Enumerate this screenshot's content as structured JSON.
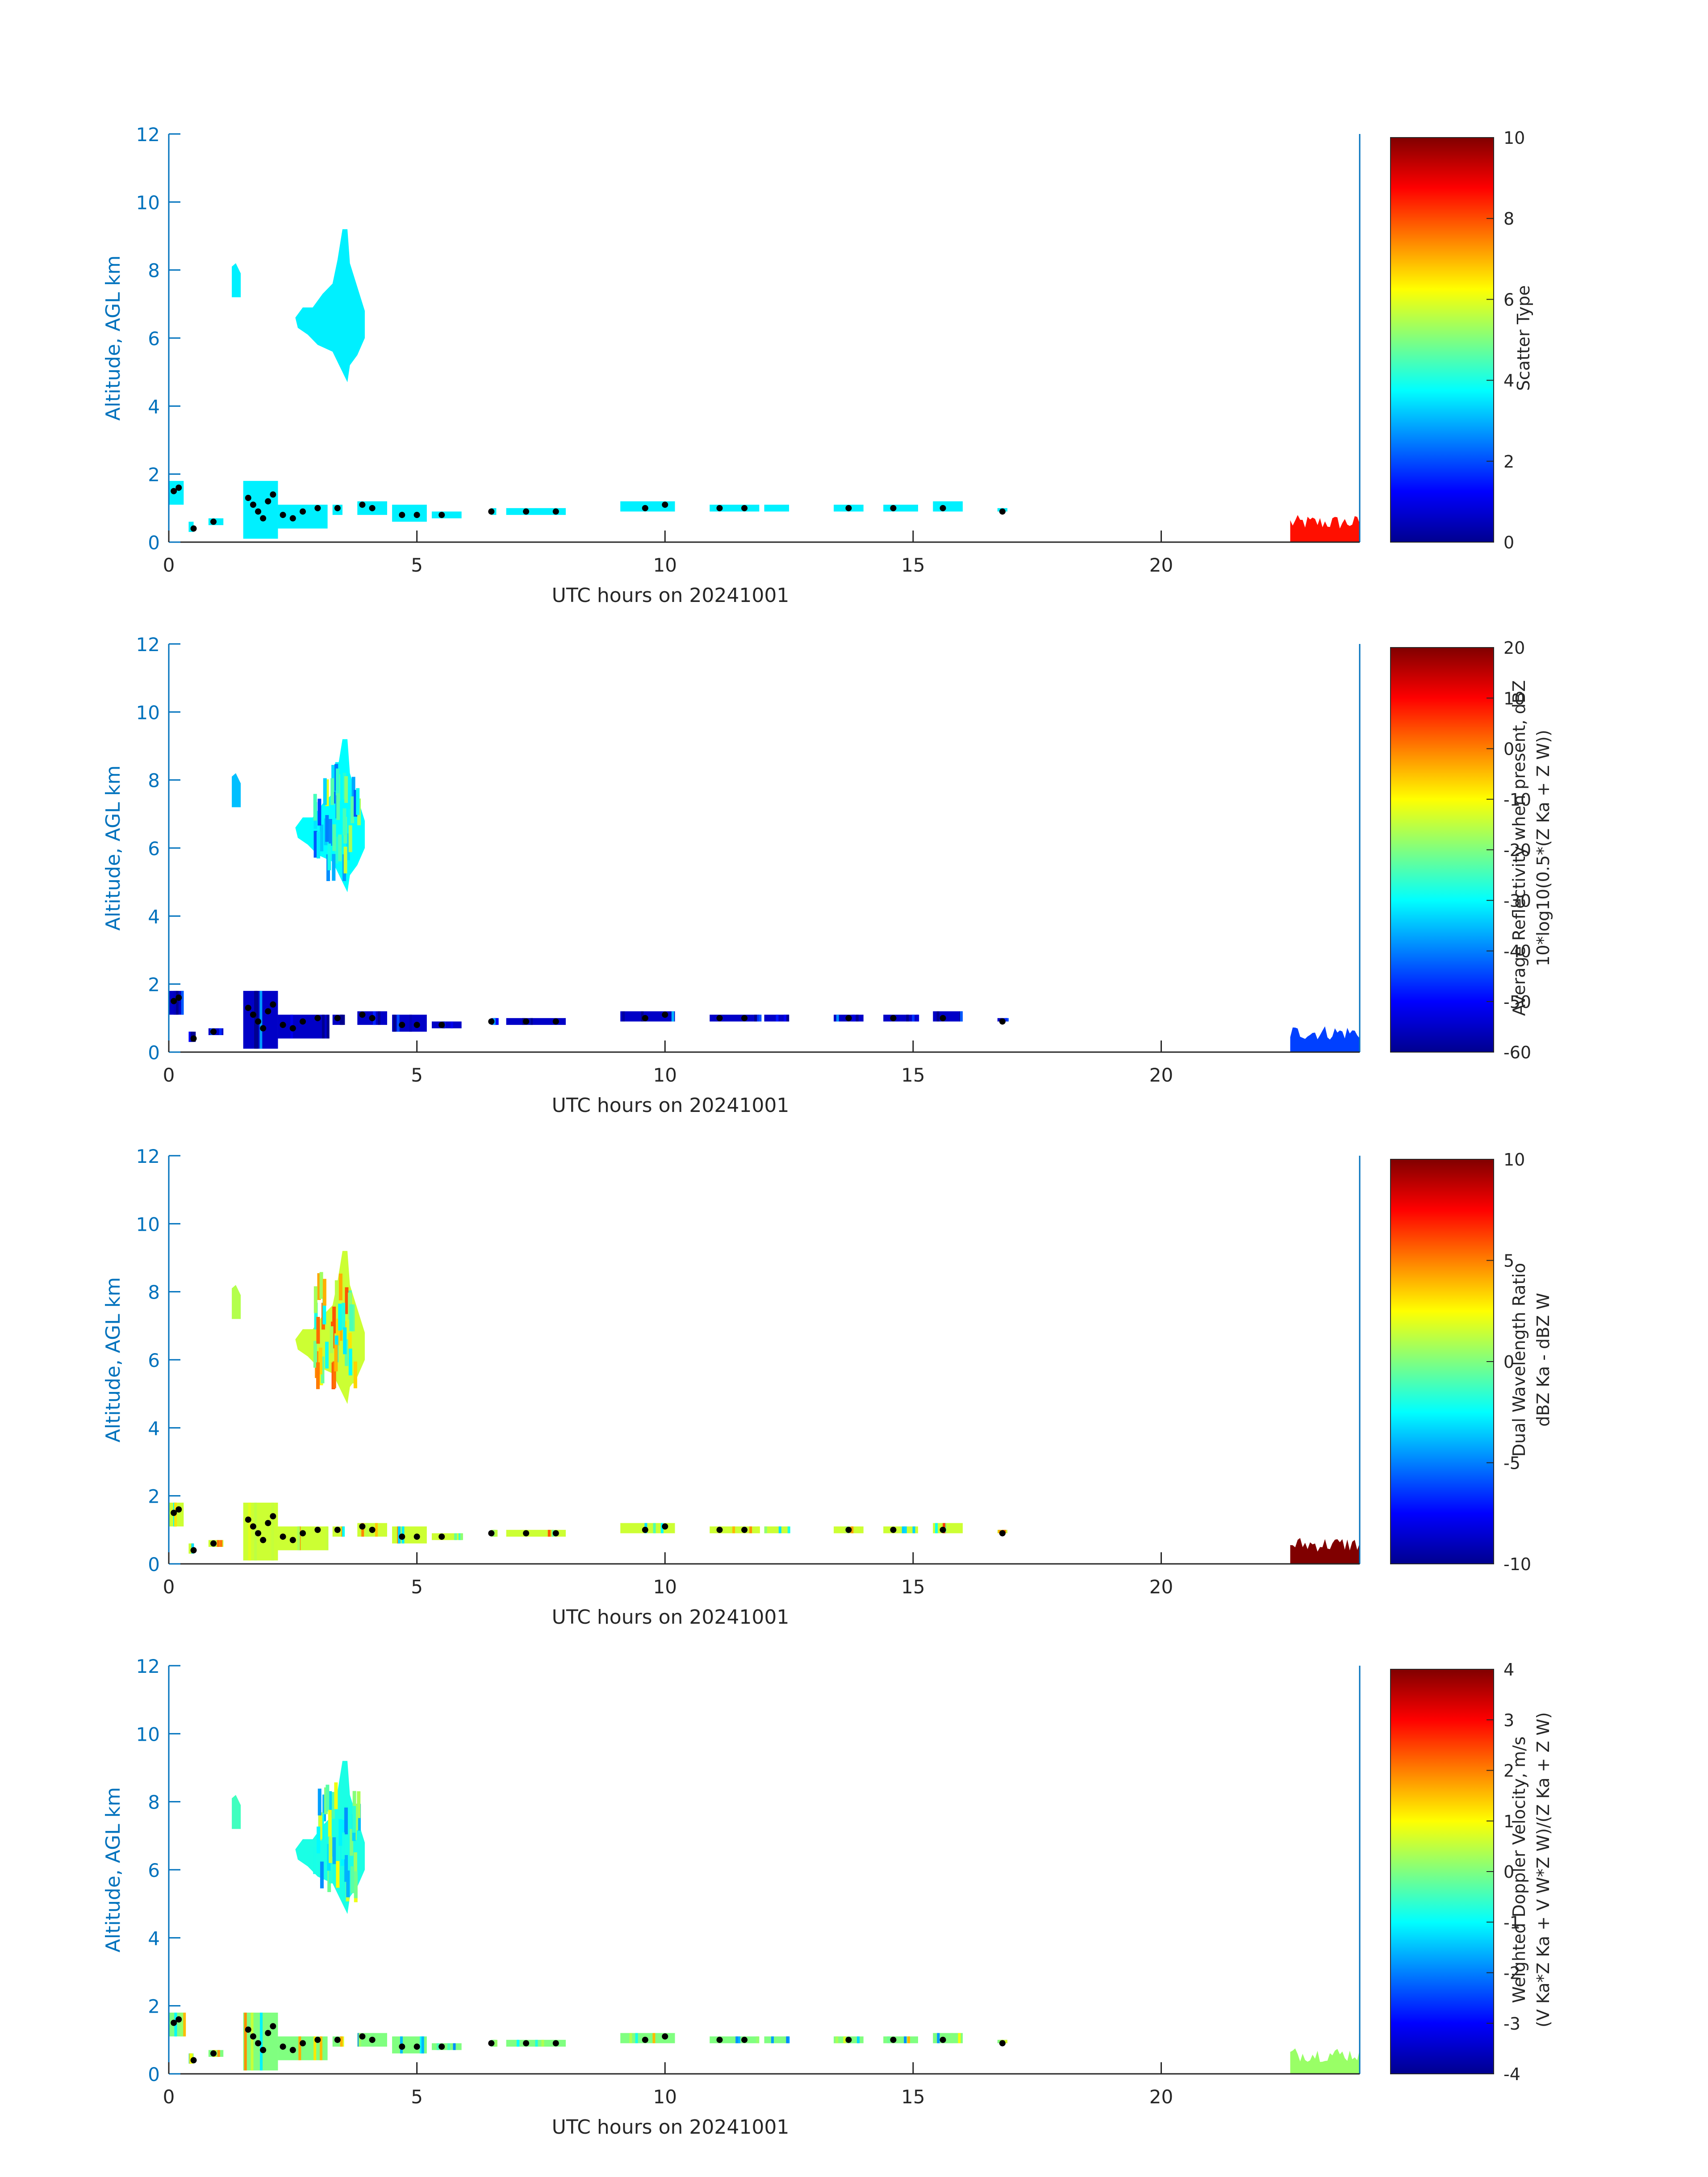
{
  "figure": {
    "date": "20241001",
    "colors": {
      "axis": "#0072BD",
      "text": "#262626",
      "background": "#ffffff"
    }
  },
  "chart_data": [
    {
      "type": "heatmap",
      "id": "scatter",
      "title": "",
      "xlabel": "UTC hours on 20241001",
      "ylabel": "Altitude, AGL km",
      "xlim": [
        0,
        24
      ],
      "ylim": [
        0,
        12
      ],
      "x_ticks": [
        0,
        5,
        10,
        15,
        20
      ],
      "y_ticks": [
        0,
        2,
        4,
        6,
        8,
        10,
        12
      ],
      "colorbar": {
        "label_lines": [
          "Scatter Type"
        ],
        "clim": [
          0,
          10
        ],
        "ticks": [
          0,
          2,
          4,
          6,
          8,
          10
        ],
        "tick_labels": [
          "0",
          "2",
          "4",
          "6",
          "8",
          "10"
        ]
      },
      "regions": [
        {
          "desc": "upper cloud",
          "x": [
            2.5,
            4.0
          ],
          "y": [
            4.6,
            9.2
          ],
          "value": 3.6
        },
        {
          "desc": "small upper patch",
          "x": [
            1.25,
            1.45
          ],
          "y": [
            7.2,
            8.2
          ],
          "value": 3.6
        },
        {
          "desc": "low cloud",
          "x": [
            0.0,
            17.0
          ],
          "y": [
            0.0,
            1.8
          ],
          "value": 3.6
        },
        {
          "desc": "late low layer",
          "x": [
            22.6,
            24.0
          ],
          "y": [
            0.0,
            0.8
          ],
          "value": 8.6
        }
      ]
    },
    {
      "type": "heatmap",
      "id": "reflectivity",
      "title": "",
      "xlabel": "UTC hours on 20241001",
      "ylabel": "Altitude, AGL km",
      "xlim": [
        0,
        24
      ],
      "ylim": [
        0,
        12
      ],
      "x_ticks": [
        0,
        5,
        10,
        15,
        20
      ],
      "y_ticks": [
        0,
        2,
        4,
        6,
        8,
        10,
        12
      ],
      "colorbar": {
        "label_lines": [
          "Average Reflectivity when present, dBZ",
          "10*log10(0.5*(Z_Ka + Z_W))"
        ],
        "clim": [
          -60,
          20
        ],
        "ticks": [
          20,
          10,
          0,
          -10,
          -20,
          -30,
          -40,
          -50,
          -60
        ],
        "tick_labels": [
          "20",
          "10",
          "0",
          "-10",
          "-20",
          "-30",
          "-40",
          "-50",
          "-60"
        ]
      },
      "regions": [
        {
          "desc": "upper cloud",
          "x": [
            2.5,
            4.0
          ],
          "y": [
            4.6,
            9.2
          ],
          "value": -30
        },
        {
          "desc": "small upper patch",
          "x": [
            1.25,
            1.45
          ],
          "y": [
            7.2,
            8.2
          ],
          "value": -35
        },
        {
          "desc": "low cloud",
          "x": [
            0.0,
            17.0
          ],
          "y": [
            0.0,
            1.8
          ],
          "value": -55
        },
        {
          "desc": "late low layer",
          "x": [
            22.6,
            24.0
          ],
          "y": [
            0.0,
            0.8
          ],
          "value": -45
        }
      ]
    },
    {
      "type": "heatmap",
      "id": "dwr",
      "title": "",
      "xlabel": "UTC hours on 20241001",
      "ylabel": "Altitude, AGL km",
      "xlim": [
        0,
        24
      ],
      "ylim": [
        0,
        12
      ],
      "x_ticks": [
        0,
        5,
        10,
        15,
        20
      ],
      "y_ticks": [
        0,
        2,
        4,
        6,
        8,
        10,
        12
      ],
      "colorbar": {
        "label_lines": [
          "Dual Wavelength Ratio",
          "dBZ_Ka - dBZ_W"
        ],
        "clim": [
          -10,
          10
        ],
        "ticks": [
          10,
          5,
          0,
          -5,
          -10
        ],
        "tick_labels": [
          "10",
          "5",
          "0",
          "-5",
          "-10"
        ]
      },
      "regions": [
        {
          "desc": "upper cloud",
          "x": [
            2.6,
            4.0
          ],
          "y": [
            4.7,
            9.2
          ],
          "value": 1.5
        },
        {
          "desc": "small upper patch",
          "x": [
            1.25,
            1.45
          ],
          "y": [
            7.2,
            8.2
          ],
          "value": 1.0
        },
        {
          "desc": "low cloud",
          "x": [
            0.0,
            17.0
          ],
          "y": [
            0.0,
            1.8
          ],
          "value": 1.5
        },
        {
          "desc": "late low layer",
          "x": [
            22.6,
            24.0
          ],
          "y": [
            0.0,
            0.8
          ],
          "value": 10
        }
      ]
    },
    {
      "type": "heatmap",
      "id": "doppler",
      "title": "",
      "xlabel": "UTC hours on 20241001",
      "ylabel": "Altitude, AGL km",
      "xlim": [
        0,
        24
      ],
      "ylim": [
        0,
        12
      ],
      "x_ticks": [
        0,
        5,
        10,
        15,
        20
      ],
      "y_ticks": [
        0,
        2,
        4,
        6,
        8,
        10,
        12
      ],
      "colorbar": {
        "label_lines": [
          "Weighted Doppler Velocity, m/s",
          "(V_Ka*Z_Ka + V_W*Z_W)/(Z_Ka + Z_W)"
        ],
        "clim": [
          -4,
          4
        ],
        "ticks": [
          4,
          3,
          2,
          1,
          0,
          -1,
          -2,
          -3,
          -4
        ],
        "tick_labels": [
          "4",
          "3",
          "2",
          "1",
          "0",
          "-1",
          "-2",
          "-3",
          "-4"
        ]
      },
      "regions": [
        {
          "desc": "upper cloud",
          "x": [
            2.5,
            4.0
          ],
          "y": [
            4.6,
            9.2
          ],
          "value": -0.8
        },
        {
          "desc": "small upper patch",
          "x": [
            1.25,
            1.45
          ],
          "y": [
            7.2,
            8.2
          ],
          "value": -0.5
        },
        {
          "desc": "low cloud",
          "x": [
            0.0,
            17.0
          ],
          "y": [
            0.0,
            1.8
          ],
          "value": 0.0
        },
        {
          "desc": "late low layer",
          "x": [
            22.6,
            24.0
          ],
          "y": [
            0.0,
            0.8
          ],
          "value": 0.2
        }
      ]
    }
  ]
}
